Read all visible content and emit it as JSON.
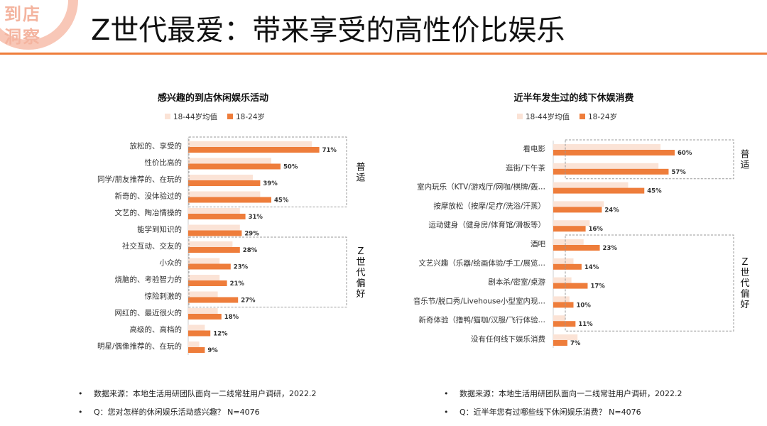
{
  "logo": {
    "line1": "到店",
    "line2": "洞察"
  },
  "title": "Z世代最爱：带来享受的高性价比娱乐",
  "colors": {
    "accent": "#ee7d3b",
    "light": "#fbe3d6",
    "box": "#999999"
  },
  "chart_data": [
    {
      "type": "bar",
      "orientation": "horizontal",
      "title": "感兴趣的到店休闲娱乐活动",
      "legend": [
        "18-44岁均值",
        "18-24岁"
      ],
      "categories": [
        "放松的、享受的",
        "性价比高的",
        "同学/朋友推荐的、在玩的",
        "新奇的、没体验过的",
        "文艺的、陶冶情操的",
        "能学到知识的",
        "社交互动、交友的",
        "小众的",
        "烧脑的、考验智力的",
        "惊险刺激的",
        "网红的、最近很火的",
        "高级的、高档的",
        "明星/偶像推荐的、在玩的"
      ],
      "series": [
        {
          "name": "18-44岁均值",
          "values": [
            67,
            45,
            35,
            39,
            28,
            28,
            24,
            17,
            17,
            16,
            16,
            9,
            6
          ]
        },
        {
          "name": "18-24岁",
          "values": [
            71,
            50,
            39,
            45,
            31,
            29,
            28,
            23,
            21,
            27,
            18,
            12,
            9
          ]
        }
      ],
      "value_labels": [
        "71%",
        "50%",
        "39%",
        "45%",
        "31%",
        "29%",
        "28%",
        "23%",
        "21%",
        "27%",
        "18%",
        "12%",
        "9%"
      ],
      "groups": [
        {
          "label": "普适",
          "start": 0,
          "end": 3
        },
        {
          "label": "Z世代偏好",
          "start": 6,
          "end": 9
        }
      ]
    },
    {
      "type": "bar",
      "orientation": "horizontal",
      "title": "近半年发生过的线下休娱消费",
      "legend": [
        "18-44岁均值",
        "18-24岁"
      ],
      "categories": [
        "看电影",
        "逛街/下午茶",
        "室内玩乐（KTV/游戏厅/网咖/棋牌/轰…",
        "按摩放松（按摩/足疗/洗浴/汗蒸）",
        "运动健身（健身房/体育馆/滑板等）",
        "酒吧",
        "文艺兴趣（乐器/绘画体验/手工/展览…",
        "剧本杀/密室/桌游",
        "音乐节/脱口秀/Livehouse小型室内现…",
        "新奇体验（撸鸭/猫咖/汉服/飞行体验…",
        "没有任何线下娱乐消费"
      ],
      "series": [
        {
          "name": "18-44岁均值",
          "values": [
            53,
            52,
            37,
            25,
            18,
            15,
            10,
            9,
            8,
            6,
            12
          ]
        },
        {
          "name": "18-24岁",
          "values": [
            60,
            57,
            45,
            24,
            16,
            23,
            14,
            17,
            10,
            11,
            7
          ]
        }
      ],
      "value_labels": [
        "60%",
        "57%",
        "45%",
        "24%",
        "16%",
        "23%",
        "14%",
        "17%",
        "10%",
        "11%",
        "7%"
      ],
      "groups": [
        {
          "label": "普适",
          "start": 0,
          "end": 1
        },
        {
          "label": "Z世代偏好",
          "start": 5,
          "end": 9
        }
      ]
    }
  ],
  "notes": [
    {
      "bullet": "•",
      "text": "数据来源：本地生活用研团队面向一二线常驻用户调研，2022.2"
    },
    {
      "bullet": "•",
      "text": "Q：您对怎样的休闲娱乐活动感兴趣？ N=4076"
    },
    {
      "bullet": "•",
      "text": "数据来源：本地生活用研团队面向一二线常驻用户调研，2022.2"
    },
    {
      "bullet": "•",
      "text": "Q：近半年您有过哪些线下休闲娱乐消费？ N=4076"
    }
  ]
}
